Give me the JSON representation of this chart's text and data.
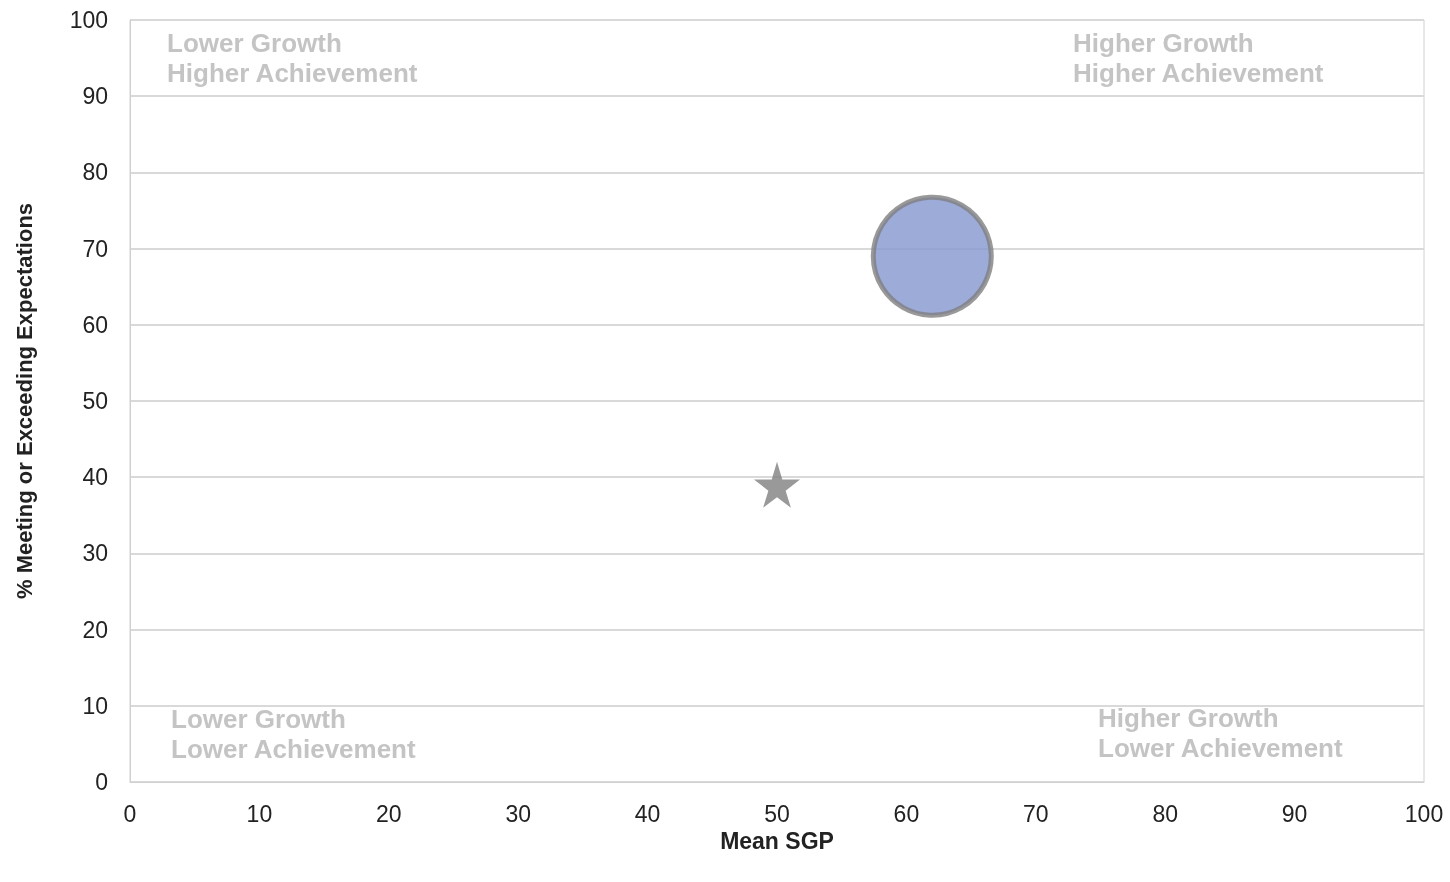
{
  "chart_data": {
    "type": "bubble",
    "xlabel": "Mean SGP",
    "ylabel": "% Meeting or Exceeding Expectations",
    "xlim": [
      0,
      100
    ],
    "xticks": [
      0,
      10,
      20,
      30,
      40,
      50,
      60,
      70,
      80,
      90,
      100
    ],
    "ylim": [
      0,
      100
    ],
    "yticks": [
      0,
      10,
      20,
      30,
      40,
      50,
      60,
      70,
      80,
      90,
      100
    ],
    "grid": "y",
    "series": [
      {
        "color": "#8496cf",
        "x": [
          62
        ],
        "values": [
          69
        ],
        "sizes": [
          1
        ]
      },
      {
        "type": "scatter",
        "color": "#7f7f7f",
        "x": [
          50
        ],
        "values": [
          39
        ],
        "marker": "star"
      }
    ],
    "annotations": [
      "Lower Growth\nHigher Achievement",
      "Higher Growth\nHigher Achievement",
      "Lower Growth\nLower Achievement",
      "Higher Growth\nLower Achievement"
    ]
  }
}
